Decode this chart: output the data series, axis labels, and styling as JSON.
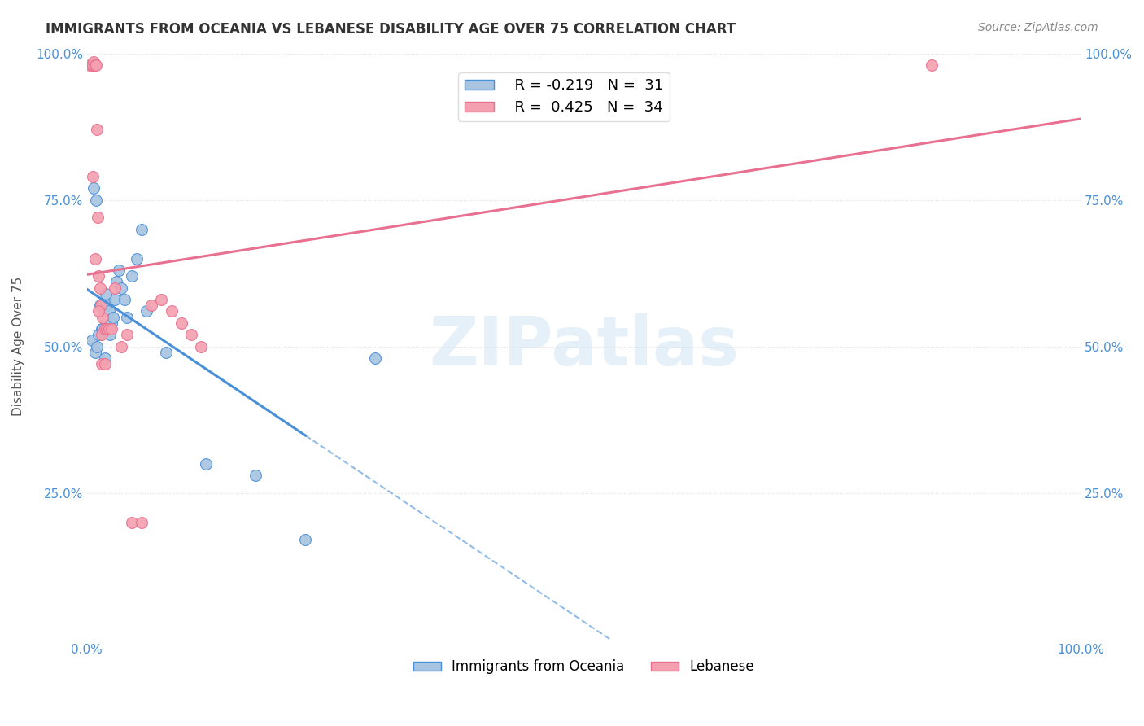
{
  "title": "IMMIGRANTS FROM OCEANIA VS LEBANESE DISABILITY AGE OVER 75 CORRELATION CHART",
  "source": "Source: ZipAtlas.com",
  "ylabel": "Disability Age Over 75",
  "xmin": 0.0,
  "xmax": 1.0,
  "ymin": 0.0,
  "ymax": 1.0,
  "oceania_color": "#a8c4e0",
  "lebanese_color": "#f4a0b0",
  "oceania_line_color": "#4a90d9",
  "lebanese_line_color": "#e87090",
  "legend_R_oceania": "-0.219",
  "legend_N_oceania": "31",
  "legend_R_lebanese": "0.425",
  "legend_N_lebanese": "34",
  "oceania_points_x": [
    0.005,
    0.008,
    0.01,
    0.012,
    0.015,
    0.018,
    0.02,
    0.022,
    0.025,
    0.028,
    0.03,
    0.032,
    0.035,
    0.038,
    0.04,
    0.045,
    0.05,
    0.055,
    0.06,
    0.08,
    0.12,
    0.17,
    0.22,
    0.007,
    0.009,
    0.013,
    0.016,
    0.019,
    0.023,
    0.026,
    0.29
  ],
  "oceania_points_y": [
    0.51,
    0.49,
    0.5,
    0.52,
    0.53,
    0.48,
    0.57,
    0.56,
    0.54,
    0.58,
    0.61,
    0.63,
    0.6,
    0.58,
    0.55,
    0.62,
    0.65,
    0.7,
    0.56,
    0.49,
    0.3,
    0.28,
    0.17,
    0.77,
    0.75,
    0.57,
    0.53,
    0.59,
    0.52,
    0.55,
    0.48
  ],
  "lebanese_points_x": [
    0.003,
    0.005,
    0.006,
    0.007,
    0.008,
    0.009,
    0.01,
    0.011,
    0.012,
    0.013,
    0.014,
    0.015,
    0.016,
    0.018,
    0.02,
    0.022,
    0.025,
    0.028,
    0.035,
    0.045,
    0.055,
    0.065,
    0.075,
    0.085,
    0.095,
    0.105,
    0.115,
    0.006,
    0.008,
    0.012,
    0.015,
    0.018,
    0.85,
    0.04
  ],
  "lebanese_points_y": [
    0.98,
    0.98,
    0.98,
    0.985,
    0.98,
    0.98,
    0.87,
    0.72,
    0.62,
    0.6,
    0.57,
    0.52,
    0.55,
    0.53,
    0.53,
    0.53,
    0.53,
    0.6,
    0.5,
    0.2,
    0.2,
    0.57,
    0.58,
    0.56,
    0.54,
    0.52,
    0.5,
    0.79,
    0.65,
    0.56,
    0.47,
    0.47,
    0.98,
    0.52
  ],
  "watermark": "ZIPatlas",
  "background_color": "#ffffff",
  "grid_color": "#e0e0e0"
}
